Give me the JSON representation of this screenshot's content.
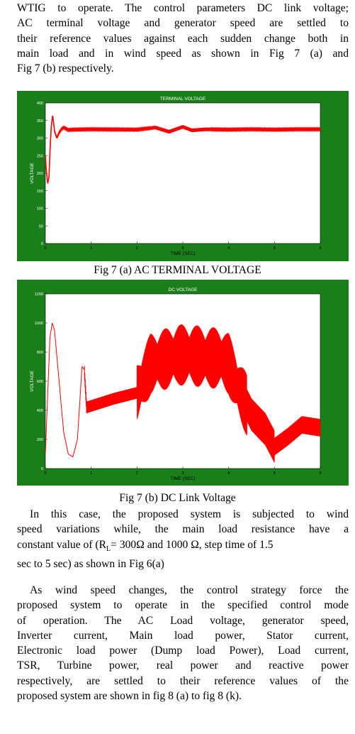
{
  "intro_lines": [
    "WTIG to operate. The control parameters DC link voltage;",
    "AC terminal voltage and generator speed are settled to",
    "their reference values against each sudden change both in",
    "main load and in wind speed as shown in Fig 7 (a) and",
    "Fig 7 (b) respectively."
  ],
  "fig_a_caption": "Fig 7 (a) AC TERMINAL VOLTAGE",
  "fig_b_caption": "Fig 7 (b) DC Link Voltage",
  "para2_lines": [
    "In this case, the proposed system is subjected to wind",
    "speed variations while, the main load resistance have a",
    "constant value of (R",
    "L",
    "= 300Ω and 1000 Ω, step time of 1.5",
    "sec to 5 sec) as shown in Fig 6(a)"
  ],
  "para3_lines": [
    "As wind speed changes, the control strategy force the",
    "proposed system to operate in the specified control mode",
    "of operation. The AC Load voltage, generator speed,",
    "Inverter current, Main load power, Stator current,",
    "Electronic load power (Dump load Power), Load current,",
    "TSR, Turbine power, real power and reactive power",
    "respectively, are settled to their reference values of the",
    "proposed system are shown in fig 8 (a) to fig 8 (k)."
  ],
  "colors": {
    "figure_bg": "#1a7f1a",
    "trace": "#ff0000",
    "plot_bg": "#ffffff"
  },
  "chart_data": [
    {
      "type": "line",
      "title": "TERMINAL VOLTAGE",
      "xlabel": "TIME (SEC)",
      "ylabel": "VOLTAGE",
      "xlim": [
        0,
        6
      ],
      "ylim": [
        0,
        400
      ],
      "xticks": [
        "0",
        "1",
        "2",
        "3",
        "4",
        "5",
        "6"
      ],
      "yticks": [
        "0",
        "50",
        "100",
        "150",
        "200",
        "250",
        "300",
        "350",
        "400"
      ],
      "x": [
        0,
        0.02,
        0.05,
        0.08,
        0.1,
        0.13,
        0.16,
        0.2,
        0.25,
        0.3,
        0.35,
        0.4,
        0.5,
        0.6,
        1.0,
        2.0,
        2.4,
        2.7,
        3.0,
        3.2,
        3.5,
        4.0,
        4.5,
        5.0,
        5.5,
        6.0
      ],
      "values": [
        250,
        210,
        170,
        190,
        260,
        335,
        365,
        320,
        300,
        315,
        325,
        330,
        323,
        324,
        325,
        324,
        330,
        318,
        332,
        322,
        325,
        324,
        325,
        324,
        325,
        325
      ]
    },
    {
      "type": "line",
      "title": "DC VOLTAGE",
      "xlabel": "TIME (SEC)",
      "ylabel": "VOLTAGE",
      "xlim": [
        0,
        6
      ],
      "ylim": [
        0,
        1200
      ],
      "xticks": [
        "0",
        "1",
        "2",
        "3",
        "4",
        "5",
        "6"
      ],
      "yticks": [
        "0",
        "200",
        "400",
        "600",
        "800",
        "1000",
        "1200"
      ],
      "x": [
        0,
        0.05,
        0.1,
        0.15,
        0.2,
        0.3,
        0.4,
        0.5,
        0.6,
        0.7,
        0.8,
        0.85,
        0.9,
        1.0,
        1.5,
        2.0,
        2.3,
        2.6,
        2.9,
        3.2,
        3.5,
        3.8,
        4.0,
        4.2,
        4.5,
        4.8,
        5.0,
        5.3,
        5.6,
        6.0
      ],
      "values": [
        100,
        500,
        900,
        1000,
        950,
        600,
        250,
        100,
        80,
        200,
        700,
        680,
        420,
        430,
        480,
        520,
        720,
        750,
        780,
        780,
        760,
        760,
        720,
        560,
        370,
        270,
        150,
        220,
        300,
        280
      ]
    }
  ]
}
